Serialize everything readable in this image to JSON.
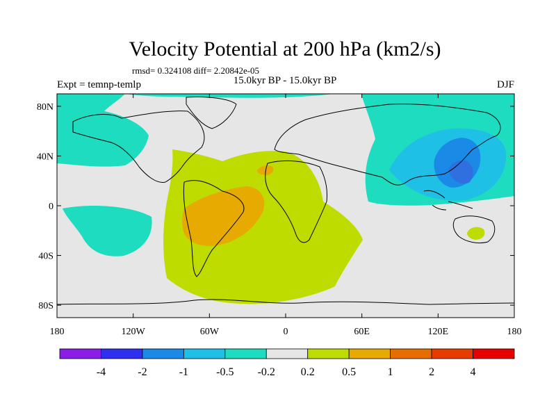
{
  "chart_data": {
    "type": "contour_map",
    "title": "Velocity Potential at 200 hPa (km2/s)",
    "subtitle_stats": "rmsd= 0.324108 diff= 2.20842e-05",
    "left_label": "Expt = temnp-temlp",
    "center_label": "15.0kyr BP - 15.0kyr BP",
    "right_label": "DJF",
    "x_ticks": [
      "180",
      "120W",
      "60W",
      "0",
      "60E",
      "120E",
      "180"
    ],
    "y_ticks": [
      "80N",
      "40N",
      "0",
      "40S",
      "80S"
    ],
    "xlim": [
      -180,
      180
    ],
    "ylim": [
      -90,
      90
    ],
    "colorbar": {
      "levels": [
        "-4",
        "-2",
        "-1",
        "-0.5",
        "-0.2",
        "0.2",
        "0.5",
        "1",
        "2",
        "4"
      ],
      "colors": [
        "#8a1ee6",
        "#2f2ff0",
        "#1a8ae6",
        "#1ec0e6",
        "#1edcc0",
        "#e6e6e6",
        "#bedc00",
        "#e6aa00",
        "#e66e00",
        "#e63c00",
        "#e60000"
      ]
    },
    "regions": [
      {
        "name": "north-pacific-negative",
        "level": "-0.5 to -0.2",
        "color": "#1edcc0"
      },
      {
        "name": "arctic-band-negative",
        "level": "-0.5 to -0.2",
        "color": "#1edcc0"
      },
      {
        "name": "east-asia-negative",
        "level": "-0.5 to -0.2",
        "color": "#1edcc0"
      },
      {
        "name": "east-asia-moderate",
        "level": "-1 to -0.5",
        "color": "#1ec0e6"
      },
      {
        "name": "east-asia-core",
        "level": "-2 to -1",
        "color": "#1a8ae6"
      },
      {
        "name": "south-atlantic-positive",
        "level": "0.2 to 0.5",
        "color": "#bedc00"
      },
      {
        "name": "south-america-positive",
        "level": "0.5 to 1",
        "color": "#e6aa00"
      },
      {
        "name": "australia-positive",
        "level": "0.2 to 0.5",
        "color": "#bedc00"
      }
    ]
  }
}
